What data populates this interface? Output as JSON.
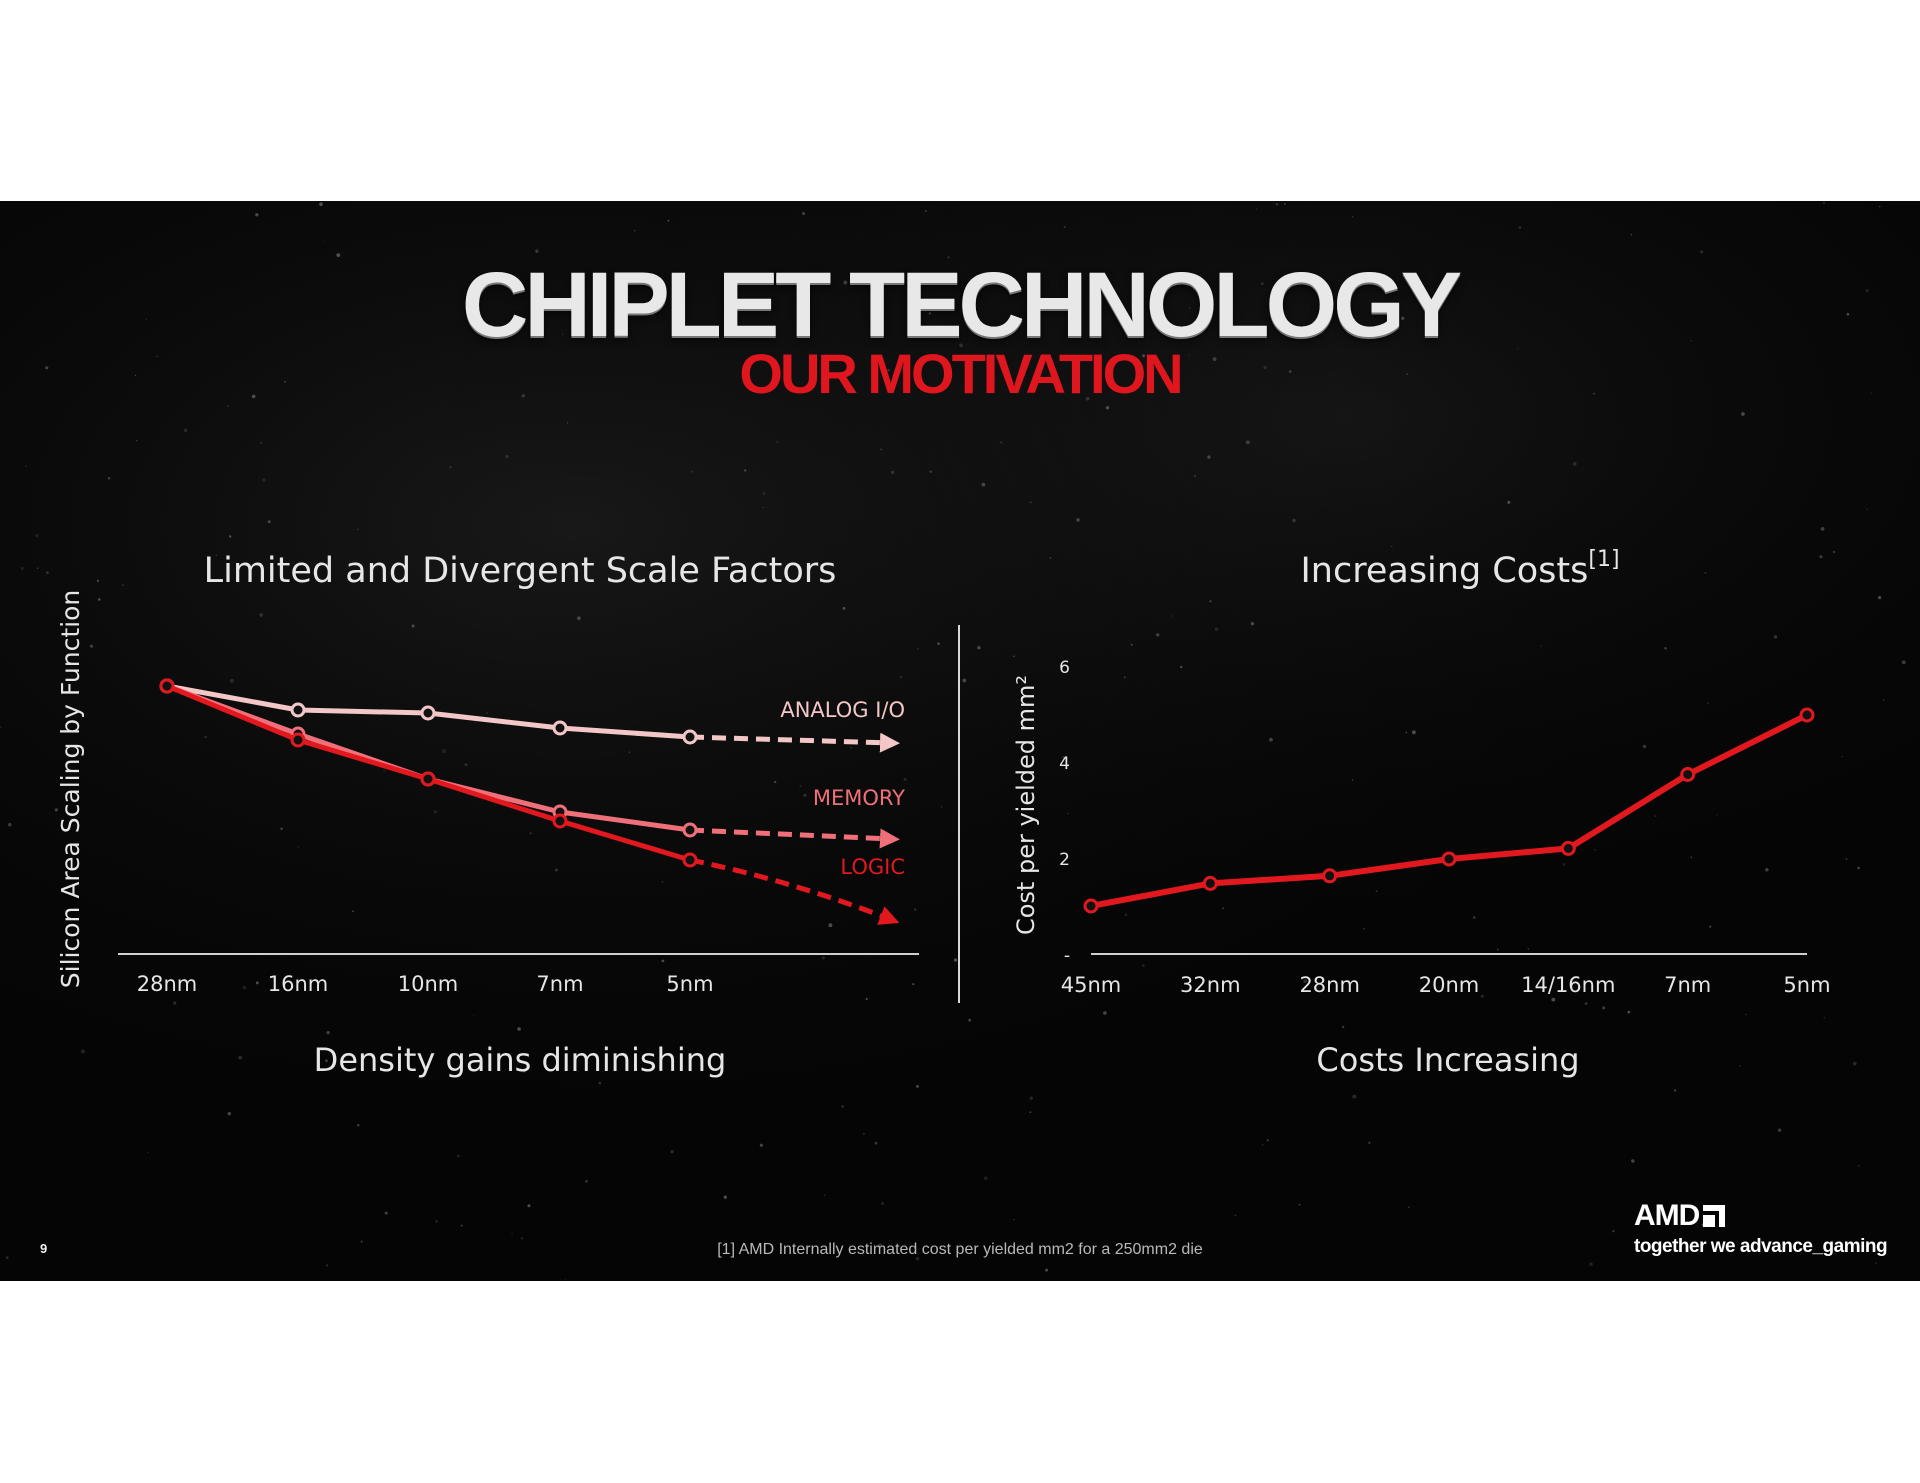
{
  "slide": {
    "title": "CHIPLET TECHNOLOGY",
    "subtitle": "OUR MOTIVATION",
    "page_number": "9",
    "footnote": "[1] AMD Internally estimated cost per yielded mm2 for a 250mm2 die",
    "logo_text": "AMD",
    "tagline": "together we advance_gaming"
  },
  "colors": {
    "logic": "#e2181f",
    "memory": "#f0707a",
    "analog": "#f3c7c7",
    "cost": "#e2181f",
    "title_red": "#e0161e"
  },
  "left_panel": {
    "heading": "Limited and Divergent Scale Factors",
    "caption": "Density gains diminishing"
  },
  "right_panel": {
    "heading": "Increasing Costs",
    "heading_note": "[1]",
    "caption": "Costs Increasing"
  },
  "chart_data": [
    {
      "type": "line",
      "title": "Limited and Divergent Scale Factors",
      "xlabel": "",
      "ylabel": "Silicon Area Scaling by Function",
      "categories": [
        "28nm",
        "16nm",
        "10nm",
        "7nm",
        "5nm",
        ""
      ],
      "ylim": [
        0,
        1
      ],
      "grid": false,
      "series": [
        {
          "name": "ANALOG I/O",
          "color_key": "analog",
          "values": [
            1.0,
            0.92,
            0.91,
            0.86,
            0.83,
            0.81
          ],
          "projected_from": 4
        },
        {
          "name": "MEMORY",
          "color_key": "memory",
          "values": [
            1.0,
            0.84,
            0.69,
            0.58,
            0.52,
            0.49
          ],
          "projected_from": 4
        },
        {
          "name": "LOGIC",
          "color_key": "logic",
          "values": [
            1.0,
            0.82,
            0.69,
            0.55,
            0.42,
            0.22
          ],
          "projected_from": 4
        }
      ]
    },
    {
      "type": "line",
      "title": "Increasing Costs",
      "xlabel": "",
      "ylabel": "Cost per yielded mm²",
      "categories": [
        "45nm",
        "32nm",
        "28nm",
        "20nm",
        "14/16nm",
        "7nm",
        "5nm"
      ],
      "yticks": [
        "-",
        "2",
        "4",
        "6"
      ],
      "ylim": [
        0,
        6
      ],
      "grid": false,
      "series": [
        {
          "name": "",
          "color_key": "cost",
          "values": [
            1.0,
            1.47,
            1.63,
            1.98,
            2.2,
            3.74,
            4.98
          ]
        }
      ]
    }
  ]
}
